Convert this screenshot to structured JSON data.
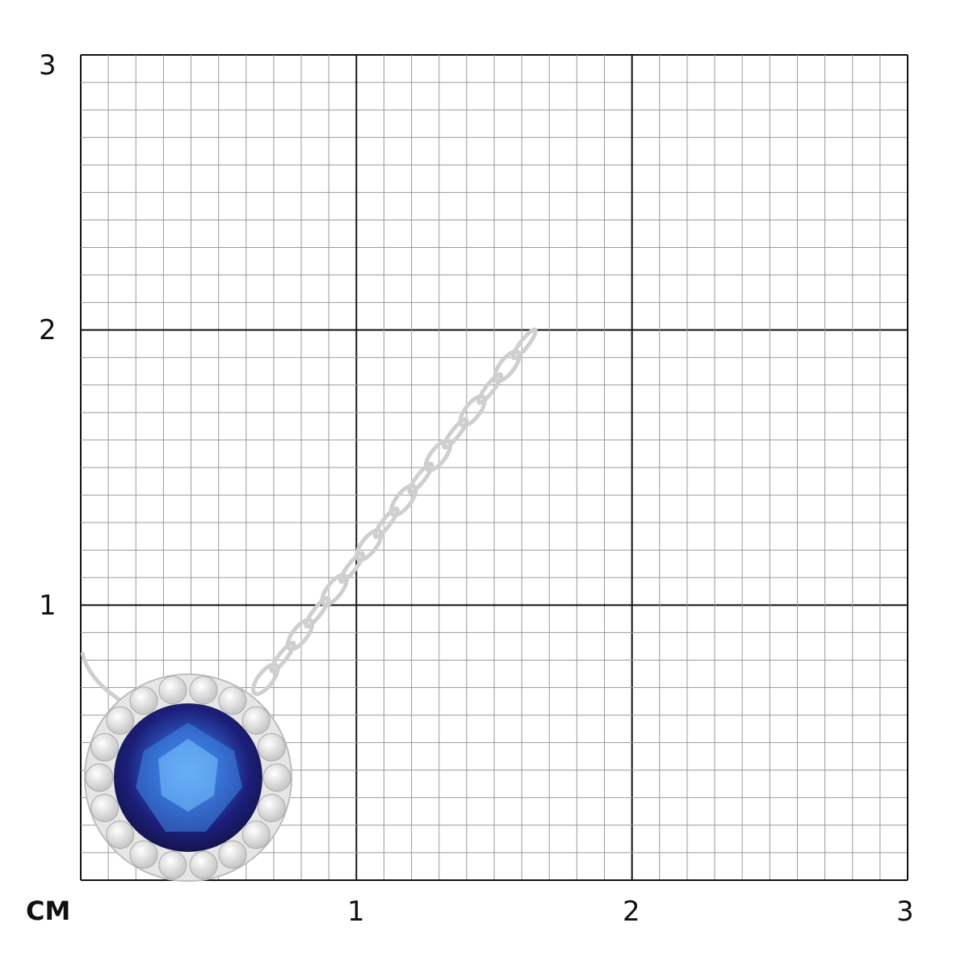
{
  "scale": {
    "unit_label": "CM",
    "y_labels": [
      "3",
      "2",
      "1"
    ],
    "x_labels": [
      "1",
      "2",
      "3"
    ],
    "range_cm": [
      0,
      3
    ],
    "minor_divisions_per_cm": 10
  },
  "colors": {
    "background": "#ffffff",
    "minor_grid": "#9a9a9a",
    "major_grid": "#111111",
    "sapphire": "#1c1f7a",
    "sapphire_highlight": "#3a7de0",
    "metal": "#d9d9d9"
  },
  "product": {
    "type-icon": "sapphire-halo-pendant-necklace"
  }
}
